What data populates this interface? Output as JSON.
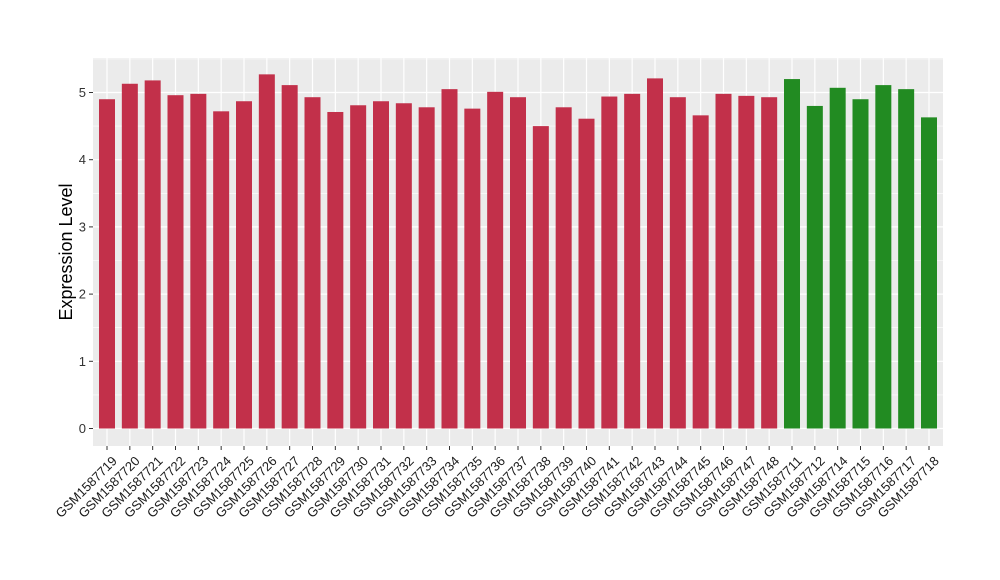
{
  "chart_data": {
    "type": "bar",
    "title": "",
    "xlabel": "",
    "ylabel": "Expression Level",
    "ylim": [
      0,
      5.5
    ],
    "yticks": [
      0,
      1,
      2,
      3,
      4,
      5
    ],
    "grid": true,
    "legend": "none",
    "colors": {
      "group_a": "#c2304a",
      "group_b": "#228b22",
      "panel": "#ebebeb",
      "gridline": "#ffffff"
    },
    "categories": [
      "GSM1587719",
      "GSM1587720",
      "GSM1587721",
      "GSM1587722",
      "GSM1587723",
      "GSM1587724",
      "GSM1587725",
      "GSM1587726",
      "GSM1587727",
      "GSM1587728",
      "GSM1587729",
      "GSM1587730",
      "GSM1587731",
      "GSM1587732",
      "GSM1587733",
      "GSM1587734",
      "GSM1587735",
      "GSM1587736",
      "GSM1587737",
      "GSM1587738",
      "GSM1587739",
      "GSM1587740",
      "GSM1587741",
      "GSM1587742",
      "GSM1587743",
      "GSM1587744",
      "GSM1587745",
      "GSM1587746",
      "GSM1587747",
      "GSM1587748",
      "GSM1587711",
      "GSM1587712",
      "GSM1587714",
      "GSM1587715",
      "GSM1587716",
      "GSM1587717",
      "GSM1587718"
    ],
    "values": [
      4.9,
      5.13,
      5.18,
      4.96,
      4.98,
      4.72,
      4.87,
      5.27,
      5.11,
      4.93,
      4.71,
      4.81,
      4.87,
      4.84,
      4.78,
      5.05,
      4.76,
      5.01,
      4.93,
      4.5,
      4.78,
      4.61,
      4.94,
      4.98,
      5.21,
      4.93,
      4.66,
      4.98,
      4.95,
      4.93,
      5.2,
      4.8,
      5.07,
      4.9,
      5.11,
      5.05,
      4.63
    ],
    "groups": [
      "a",
      "a",
      "a",
      "a",
      "a",
      "a",
      "a",
      "a",
      "a",
      "a",
      "a",
      "a",
      "a",
      "a",
      "a",
      "a",
      "a",
      "a",
      "a",
      "a",
      "a",
      "a",
      "a",
      "a",
      "a",
      "a",
      "a",
      "a",
      "a",
      "a",
      "b",
      "b",
      "b",
      "b",
      "b",
      "b",
      "b"
    ]
  }
}
